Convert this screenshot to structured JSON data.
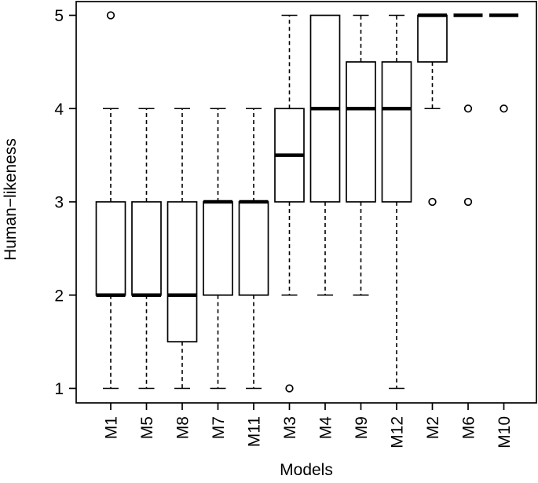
{
  "chart_data": {
    "type": "boxplot",
    "title": "",
    "xlabel": "Models",
    "ylabel": "Human−likeness",
    "ylim": [
      1,
      5
    ],
    "yticks": [
      1,
      2,
      3,
      4,
      5
    ],
    "grid": false,
    "legend": false,
    "categories": [
      "M1",
      "M5",
      "M8",
      "M7",
      "M11",
      "M3",
      "M4",
      "M9",
      "M12",
      "M2",
      "M6",
      "M10"
    ],
    "boxes": [
      {
        "name": "M1",
        "whisker_low": 1,
        "q1": 2,
        "median": 2,
        "q3": 3,
        "whisker_high": 4,
        "outliers": [
          5
        ]
      },
      {
        "name": "M5",
        "whisker_low": 1,
        "q1": 2,
        "median": 2,
        "q3": 3,
        "whisker_high": 4,
        "outliers": []
      },
      {
        "name": "M8",
        "whisker_low": 1,
        "q1": 1.5,
        "median": 2,
        "q3": 3,
        "whisker_high": 4,
        "outliers": []
      },
      {
        "name": "M7",
        "whisker_low": 1,
        "q1": 2,
        "median": 3,
        "q3": 3,
        "whisker_high": 4,
        "outliers": []
      },
      {
        "name": "M11",
        "whisker_low": 1,
        "q1": 2,
        "median": 3,
        "q3": 3,
        "whisker_high": 4,
        "outliers": []
      },
      {
        "name": "M3",
        "whisker_low": 2,
        "q1": 3,
        "median": 3.5,
        "q3": 4,
        "whisker_high": 5,
        "outliers": [
          1
        ]
      },
      {
        "name": "M4",
        "whisker_low": 2,
        "q1": 3,
        "median": 4,
        "q3": 5,
        "whisker_high": 5,
        "outliers": []
      },
      {
        "name": "M9",
        "whisker_low": 2,
        "q1": 3,
        "median": 4,
        "q3": 4.5,
        "whisker_high": 5,
        "outliers": []
      },
      {
        "name": "M12",
        "whisker_low": 1,
        "q1": 3,
        "median": 4,
        "q3": 4.5,
        "whisker_high": 5,
        "outliers": []
      },
      {
        "name": "M2",
        "whisker_low": 4,
        "q1": 4.5,
        "median": 5,
        "q3": 5,
        "whisker_high": 5,
        "outliers": [
          3
        ]
      },
      {
        "name": "M6",
        "whisker_low": 5,
        "q1": 5,
        "median": 5,
        "q3": 5,
        "whisker_high": 5,
        "outliers": [
          4,
          3
        ]
      },
      {
        "name": "M10",
        "whisker_low": 5,
        "q1": 5,
        "median": 5,
        "q3": 5,
        "whisker_high": 5,
        "outliers": [
          4
        ]
      }
    ],
    "colors": {
      "foreground": "#000000",
      "background": "#ffffff"
    }
  }
}
